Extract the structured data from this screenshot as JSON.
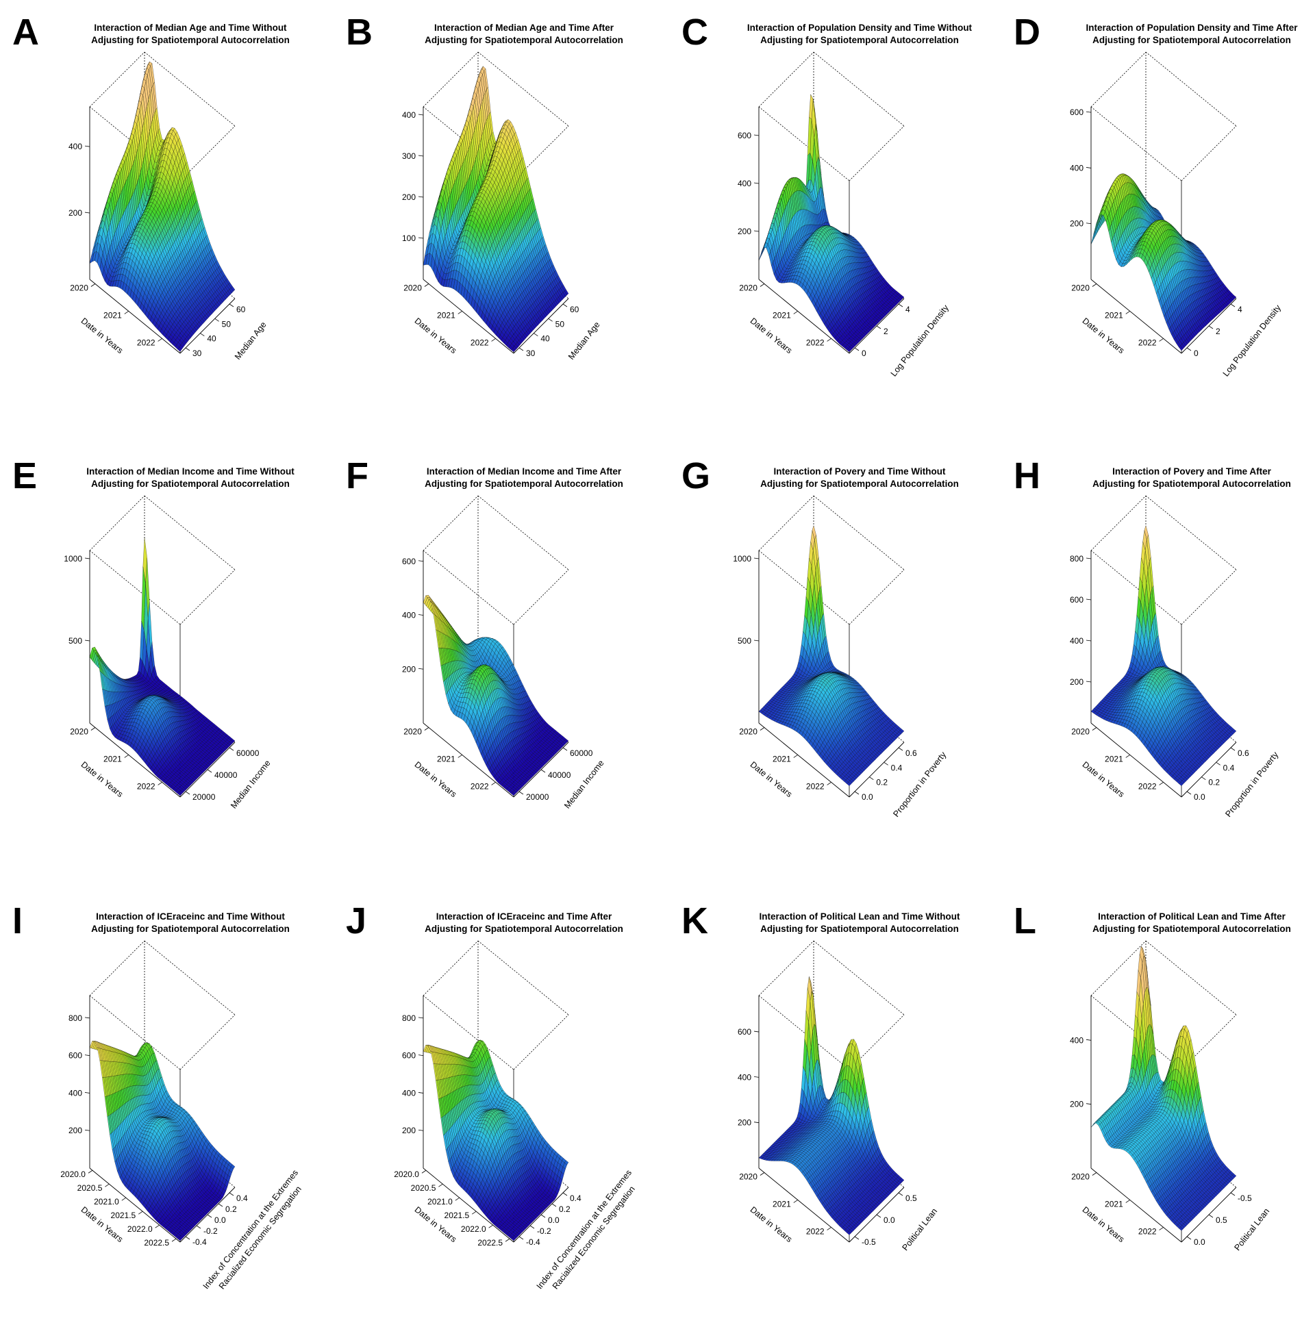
{
  "figure": {
    "background": "#ffffff",
    "colormap": [
      "#1a00a8",
      "#1f5fd0",
      "#2fc0e8",
      "#44d62a",
      "#b6e02a",
      "#e6e03c",
      "#f5c87a"
    ]
  },
  "chart_data": [
    {
      "id": "A",
      "letter": "A",
      "type": "surface",
      "title_lines": [
        "Interaction of Median Age and Time Without",
        "Adjusting for Spatiotemporal Autocorrelation"
      ],
      "xlabel": "Date in Years",
      "ylabel": "Median Age",
      "zlabel": "",
      "xlim": [
        2020,
        2022.7
      ],
      "ylim": [
        25,
        70
      ],
      "zlim": [
        0,
        520
      ],
      "xticks": [
        "2020",
        "2021",
        "2022"
      ],
      "yticks": [
        "30",
        "40",
        "50",
        "60"
      ],
      "zticks": [
        "200",
        "400"
      ]
    },
    {
      "id": "B",
      "letter": "B",
      "type": "surface",
      "title_lines": [
        "Interaction of Median Age and Time After",
        "Adjusting for Spatiotemporal Autocorrelation"
      ],
      "xlabel": "Date in Years",
      "ylabel": "Median Age",
      "zlabel": "",
      "xlim": [
        2020,
        2022.7
      ],
      "ylim": [
        25,
        70
      ],
      "zlim": [
        0,
        420
      ],
      "xticks": [
        "2020",
        "2021",
        "2022"
      ],
      "yticks": [
        "30",
        "40",
        "50",
        "60"
      ],
      "zticks": [
        "100",
        "200",
        "300",
        "400"
      ]
    },
    {
      "id": "C",
      "letter": "C",
      "type": "surface",
      "title_lines": [
        "Interaction of Population Density and Time Without",
        "Adjusting for Spatiotemporal Autocorrelation"
      ],
      "xlabel": "Date in Years",
      "ylabel": "Log Population Density",
      "zlabel": "",
      "xlim": [
        2020,
        2022.7
      ],
      "ylim": [
        -1,
        5
      ],
      "zlim": [
        0,
        720
      ],
      "xticks": [
        "2020",
        "2021",
        "2022"
      ],
      "yticks": [
        "0",
        "2",
        "4"
      ],
      "zticks": [
        "200",
        "400",
        "600"
      ]
    },
    {
      "id": "D",
      "letter": "D",
      "type": "surface",
      "title_lines": [
        "Interaction of Population Density and Time After",
        "Adjusting for Spatiotemporal Autocorrelation"
      ],
      "xlabel": "Date in Years",
      "ylabel": "Log Population Density",
      "zlabel": "",
      "xlim": [
        2020,
        2022.7
      ],
      "ylim": [
        -1,
        5
      ],
      "zlim": [
        0,
        620
      ],
      "xticks": [
        "2020",
        "2021",
        "2022"
      ],
      "yticks": [
        "0",
        "2",
        "4"
      ],
      "zticks": [
        "200",
        "400",
        "600"
      ]
    },
    {
      "id": "E",
      "letter": "E",
      "type": "surface",
      "title_lines": [
        "Interaction of Median Income and Time Without",
        "Adjusting for Spatiotemporal Autocorrelation"
      ],
      "xlabel": "Date in Years",
      "ylabel": "Median Income",
      "zlabel": "",
      "xlim": [
        2020,
        2022.7
      ],
      "ylim": [
        10000,
        70000
      ],
      "zlim": [
        0,
        1050
      ],
      "xticks": [
        "2020",
        "2021",
        "2022"
      ],
      "yticks": [
        "20000",
        "40000",
        "60000"
      ],
      "zticks": [
        "500",
        "1000"
      ]
    },
    {
      "id": "F",
      "letter": "F",
      "type": "surface",
      "title_lines": [
        "Interaction of Median Income and Time After",
        "Adjusting for Spatiotemporal Autocorrelation"
      ],
      "xlabel": "Date in Years",
      "ylabel": "Median Income",
      "zlabel": "",
      "xlim": [
        2020,
        2022.7
      ],
      "ylim": [
        10000,
        70000
      ],
      "zlim": [
        0,
        640
      ],
      "xticks": [
        "2020",
        "2021",
        "2022"
      ],
      "yticks": [
        "20000",
        "40000",
        "60000"
      ],
      "zticks": [
        "200",
        "400",
        "600"
      ]
    },
    {
      "id": "G",
      "letter": "G",
      "type": "surface",
      "title_lines": [
        "Interaction of Povery and Time Without",
        "Adjusting for Spatiotemporal Autocorrelation"
      ],
      "xlabel": "Date in Years",
      "ylabel": "Proportion in Poverty",
      "zlabel": "",
      "xlim": [
        2020,
        2022.7
      ],
      "ylim": [
        0,
        0.75
      ],
      "zlim": [
        0,
        1050
      ],
      "xticks": [
        "2020",
        "2021",
        "2022"
      ],
      "yticks": [
        "0.0",
        "0.2",
        "0.4",
        "0.6"
      ],
      "zticks": [
        "500",
        "1000"
      ]
    },
    {
      "id": "H",
      "letter": "H",
      "type": "surface",
      "title_lines": [
        "Interaction of Povery and Time After",
        "Adjusting for Spatiotemporal Autocorrelation"
      ],
      "xlabel": "Date in Years",
      "ylabel": "Proportion in Poverty",
      "zlabel": "",
      "xlim": [
        2020,
        2022.7
      ],
      "ylim": [
        0,
        0.75
      ],
      "zlim": [
        0,
        840
      ],
      "xticks": [
        "2020",
        "2021",
        "2022"
      ],
      "yticks": [
        "0.0",
        "0.2",
        "0.4",
        "0.6"
      ],
      "zticks": [
        "200",
        "400",
        "600",
        "800"
      ]
    },
    {
      "id": "I",
      "letter": "I",
      "type": "surface",
      "title_lines": [
        "Interaction of ICEraceinc and Time Without",
        "Adjusting for Spatiotemporal Autocorrelation"
      ],
      "xlabel": "Date in Years",
      "ylabel": "Index of Concentration at the Extremes",
      "ylabel2": "Racialized Economic Segregation",
      "zlabel": "",
      "xlim": [
        2020,
        2022.7
      ],
      "ylim": [
        -0.5,
        0.55
      ],
      "zlim": [
        0,
        920
      ],
      "xticks": [
        "2020.0",
        "2020.5",
        "2021.0",
        "2021.5",
        "2022.0",
        "2022.5"
      ],
      "yticks": [
        "-0.4",
        "-0.2",
        "0.0",
        "0.2",
        "0.4"
      ],
      "zticks": [
        "200",
        "400",
        "600",
        "800"
      ]
    },
    {
      "id": "J",
      "letter": "J",
      "type": "surface",
      "title_lines": [
        "Interaction of ICEraceinc and Time After",
        "Adjusting for Spatiotemporal Autocorrelation"
      ],
      "xlabel": "Date in Years",
      "ylabel": "Index of Concentration at the Extremes",
      "ylabel2": "Racialized Economic Segregation",
      "zlabel": "",
      "xlim": [
        2020,
        2022.7
      ],
      "ylim": [
        -0.5,
        0.55
      ],
      "zlim": [
        0,
        920
      ],
      "xticks": [
        "2020.0",
        "2020.5",
        "2021.0",
        "2021.5",
        "2022.0",
        "2022.5"
      ],
      "yticks": [
        "-0.4",
        "-0.2",
        "0.0",
        "0.2",
        "0.4"
      ],
      "zticks": [
        "200",
        "400",
        "600",
        "800"
      ]
    },
    {
      "id": "K",
      "letter": "K",
      "type": "surface",
      "title_lines": [
        "Interaction of Political Lean and Time Without",
        "Adjusting for Spatiotemporal Autocorrelation"
      ],
      "xlabel": "Date in Years",
      "ylabel": "Political Lean",
      "zlabel": "",
      "xlim": [
        2020,
        2022.7
      ],
      "ylim": [
        -0.75,
        0.95
      ],
      "zlim": [
        0,
        760
      ],
      "xticks": [
        "2020",
        "2021",
        "2022"
      ],
      "yticks": [
        "-0.5",
        "0.0",
        "0.5"
      ],
      "zticks": [
        "200",
        "400",
        "600"
      ]
    },
    {
      "id": "L",
      "letter": "L",
      "type": "surface",
      "title_lines": [
        "Interaction of Political Lean and Time After",
        "Adjusting for Spatiotemporal Autocorrelation"
      ],
      "xlabel": "Date in Years",
      "ylabel": "Political Lean",
      "zlabel": "",
      "xlim": [
        2020,
        2022.7
      ],
      "ylim": [
        -0.75,
        0.95
      ],
      "zlim": [
        0,
        540
      ],
      "xticks": [
        "2020",
        "2021",
        "2022"
      ],
      "yticks": [
        "0.0",
        "0.5",
        "-0.5"
      ],
      "zticks": [
        "200",
        "400"
      ]
    }
  ]
}
